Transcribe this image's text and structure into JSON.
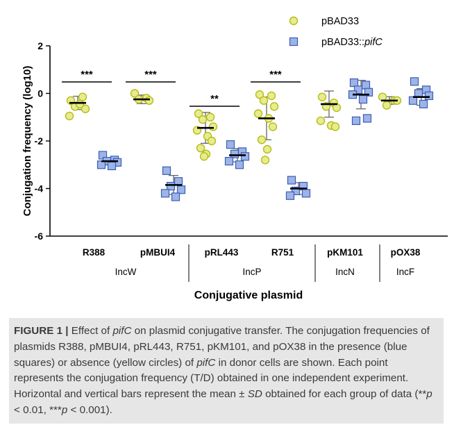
{
  "chart_data": {
    "type": "scatter",
    "title": "",
    "ylabel": "Conjugation frequency (log10)",
    "xlabel": "Conjugative plasmid",
    "ylim": [
      -6,
      2
    ],
    "yticks": [
      2,
      0,
      -2,
      -4,
      -6
    ],
    "categories": [
      "R388",
      "pMBUI4",
      "pRL443",
      "R751",
      "pKM101",
      "pOX38"
    ],
    "groups": [
      {
        "label": "IncW",
        "categories": [
          "R388",
          "pMBUI4"
        ]
      },
      {
        "label": "IncP",
        "categories": [
          "pRL443",
          "R751"
        ]
      },
      {
        "label": "IncN",
        "categories": [
          "pKM101"
        ]
      },
      {
        "label": "IncF",
        "categories": [
          "pOX38"
        ]
      }
    ],
    "legend": {
      "position": "top-right"
    },
    "series": [
      {
        "name": "pBAD33",
        "marker": "circle",
        "fill": "#e8ec8c",
        "stroke": "#b4bc1c",
        "points": [
          [
            -0.3,
            -0.15,
            -0.55,
            -0.65,
            -0.95,
            -0.45
          ],
          [
            0.0,
            -0.2,
            -0.25,
            -0.3
          ],
          [
            -0.85,
            -1.0,
            -1.1,
            -1.4,
            -1.55,
            -1.8,
            -2.0,
            -2.3,
            -2.55,
            -2.65
          ],
          [
            -0.05,
            -0.1,
            -0.3,
            -0.55,
            -0.85,
            -1.05,
            -1.4,
            -1.95,
            -2.35,
            -2.8
          ],
          [
            -0.15,
            -0.4,
            -0.55,
            -0.6,
            -1.15,
            -1.35,
            -1.4
          ],
          [
            -0.15,
            -0.3,
            -0.5,
            -0.3
          ]
        ],
        "mean": [
          -0.4,
          -0.25,
          -1.45,
          -1.05,
          -0.45,
          -0.3
        ],
        "sd": [
          0.28,
          0.18,
          0.65,
          0.9,
          0.55,
          0.16
        ]
      },
      {
        "name": "pBAD33::pifC",
        "marker": "square",
        "fill": "#9cb4e8",
        "stroke": "#3c5cb4",
        "points": [
          [
            -2.6,
            -2.8,
            -2.85,
            -2.9,
            -3.0,
            -3.05
          ],
          [
            -3.25,
            -3.7,
            -3.9,
            -4.05,
            -4.2,
            -4.35
          ],
          [
            -2.15,
            -2.45,
            -2.55,
            -2.65,
            -2.85,
            -3.0
          ],
          [
            -3.65,
            -3.9,
            -4.1,
            -4.2,
            -4.3
          ],
          [
            0.45,
            0.35,
            0.15,
            0.05,
            -0.05,
            -0.25,
            -1.05,
            -1.15
          ],
          [
            0.5,
            0.15,
            0.0,
            -0.1,
            -0.3,
            -0.45
          ]
        ],
        "mean": [
          -2.85,
          -3.85,
          -2.6,
          -4.0,
          -0.05,
          -0.15
        ],
        "sd": [
          0.15,
          0.4,
          0.28,
          0.25,
          0.6,
          0.35
        ]
      }
    ],
    "significance": [
      {
        "category": "R388",
        "label": "***"
      },
      {
        "category": "pMBUI4",
        "label": "***"
      },
      {
        "category": "pRL443",
        "label": "**"
      },
      {
        "category": "R751",
        "label": "***"
      }
    ]
  },
  "caption": {
    "figure_label": "FIGURE 1",
    "separator": "|",
    "part1": "Effect of ",
    "gene1": "pifC",
    "part2": " on plasmid conjugative transfer. The conjugation frequencies of plasmids R388, pMBUI4, pRL443, R751, pKM101, and pOX38 in the presence (blue squares) or absence (yellow circles) of ",
    "gene2": "pifC",
    "part3": " in donor cells are shown. Each point represents the conjugation frequency (T/D) obtained in one independent experiment. Horizontal and vertical bars represent the mean ± ",
    "sd_term": "SD",
    "part4": " obtained for each group of data (**",
    "p_term1": "p",
    "part5": " < 0.01, ***",
    "p_term2": "p",
    "part6": " < 0.001)."
  }
}
